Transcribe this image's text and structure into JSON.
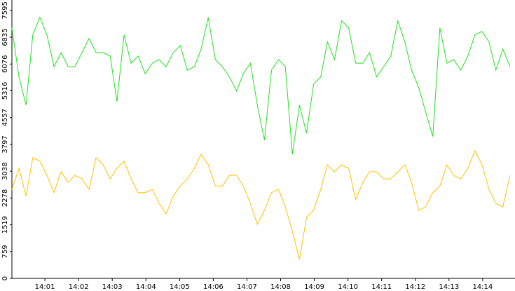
{
  "chart_data": {
    "type": "line",
    "x": [
      0.02,
      0.23,
      0.44,
      0.64,
      0.85,
      1.06,
      1.27,
      1.48,
      1.69,
      1.89,
      2.1,
      2.31,
      2.52,
      2.73,
      2.94,
      3.14,
      3.35,
      3.56,
      3.77,
      3.98,
      4.19,
      4.39,
      4.6,
      4.81,
      5.02,
      5.23,
      5.44,
      5.64,
      5.85,
      6.06,
      6.27,
      6.48,
      6.69,
      6.89,
      7.1,
      7.31,
      7.52,
      7.73,
      7.94,
      8.14,
      8.35,
      8.56,
      8.77,
      8.98,
      9.19,
      9.39,
      9.6,
      9.81,
      10.02,
      10.23,
      10.44,
      10.64,
      10.85,
      11.06,
      11.27,
      11.48,
      11.69,
      11.89,
      12.1,
      12.31,
      12.52,
      12.73,
      12.94,
      13.14,
      13.35,
      13.56,
      13.77,
      13.98,
      14.19,
      14.39,
      14.6,
      14.81
    ],
    "series": [
      {
        "color": "#22e022",
        "values": [
          7100,
          5710,
          4910,
          6900,
          7400,
          6900,
          6000,
          6400,
          6000,
          6000,
          6400,
          6800,
          6400,
          6400,
          6300,
          5010,
          6900,
          6100,
          6300,
          5800,
          6100,
          6200,
          6000,
          6400,
          6600,
          5900,
          6000,
          6500,
          7400,
          6200,
          6000,
          5710,
          5310,
          5800,
          6100,
          4910,
          3920,
          5900,
          6200,
          6000,
          3520,
          4910,
          4120,
          5510,
          5710,
          6700,
          6200,
          7300,
          7100,
          6100,
          6100,
          6400,
          5710,
          6000,
          6300,
          7300,
          6700,
          5900,
          5410,
          4710,
          4020,
          7100,
          6100,
          6200,
          5900,
          6300,
          6900,
          7000,
          6700,
          5900,
          6500,
          6000
        ]
      },
      {
        "color": "#ffc000",
        "values": [
          2520,
          3120,
          2330,
          3420,
          3320,
          2920,
          2430,
          3020,
          2720,
          2920,
          2820,
          2520,
          3420,
          3220,
          2820,
          3120,
          3320,
          2820,
          2430,
          2430,
          2520,
          2130,
          1830,
          2330,
          2620,
          2820,
          3120,
          3520,
          3220,
          2620,
          2620,
          2920,
          2920,
          2620,
          2130,
          1530,
          1930,
          2430,
          2520,
          2030,
          1330,
          540,
          1730,
          1930,
          2520,
          3220,
          3020,
          3220,
          3120,
          2230,
          2720,
          3020,
          3020,
          2820,
          2820,
          3020,
          3220,
          2720,
          1930,
          2030,
          2430,
          2620,
          3220,
          2920,
          2820,
          3120,
          3620,
          3220,
          2520,
          2130,
          2030,
          2920
        ]
      }
    ],
    "xlim": [
      0.02,
      14.96
    ],
    "xticks": [
      {
        "value": 1,
        "label": "14:01"
      },
      {
        "value": 2,
        "label": "14:02"
      },
      {
        "value": 3,
        "label": "14:03"
      },
      {
        "value": 4,
        "label": "14:04"
      },
      {
        "value": 5,
        "label": "14:05"
      },
      {
        "value": 6,
        "label": "14:06"
      },
      {
        "value": 7,
        "label": "14:07"
      },
      {
        "value": 8,
        "label": "14:08"
      },
      {
        "value": 9,
        "label": "14:09"
      },
      {
        "value": 10,
        "label": "14:10"
      },
      {
        "value": 11,
        "label": "14:11"
      },
      {
        "value": 12,
        "label": "14:12"
      },
      {
        "value": 13,
        "label": "14:13"
      },
      {
        "value": 14,
        "label": "14:14"
      }
    ],
    "ylim": [
      0,
      7890
    ],
    "yticks": [
      0,
      759,
      1519,
      2278,
      3038,
      3797,
      4557,
      5316,
      6076,
      6835,
      7595
    ]
  }
}
